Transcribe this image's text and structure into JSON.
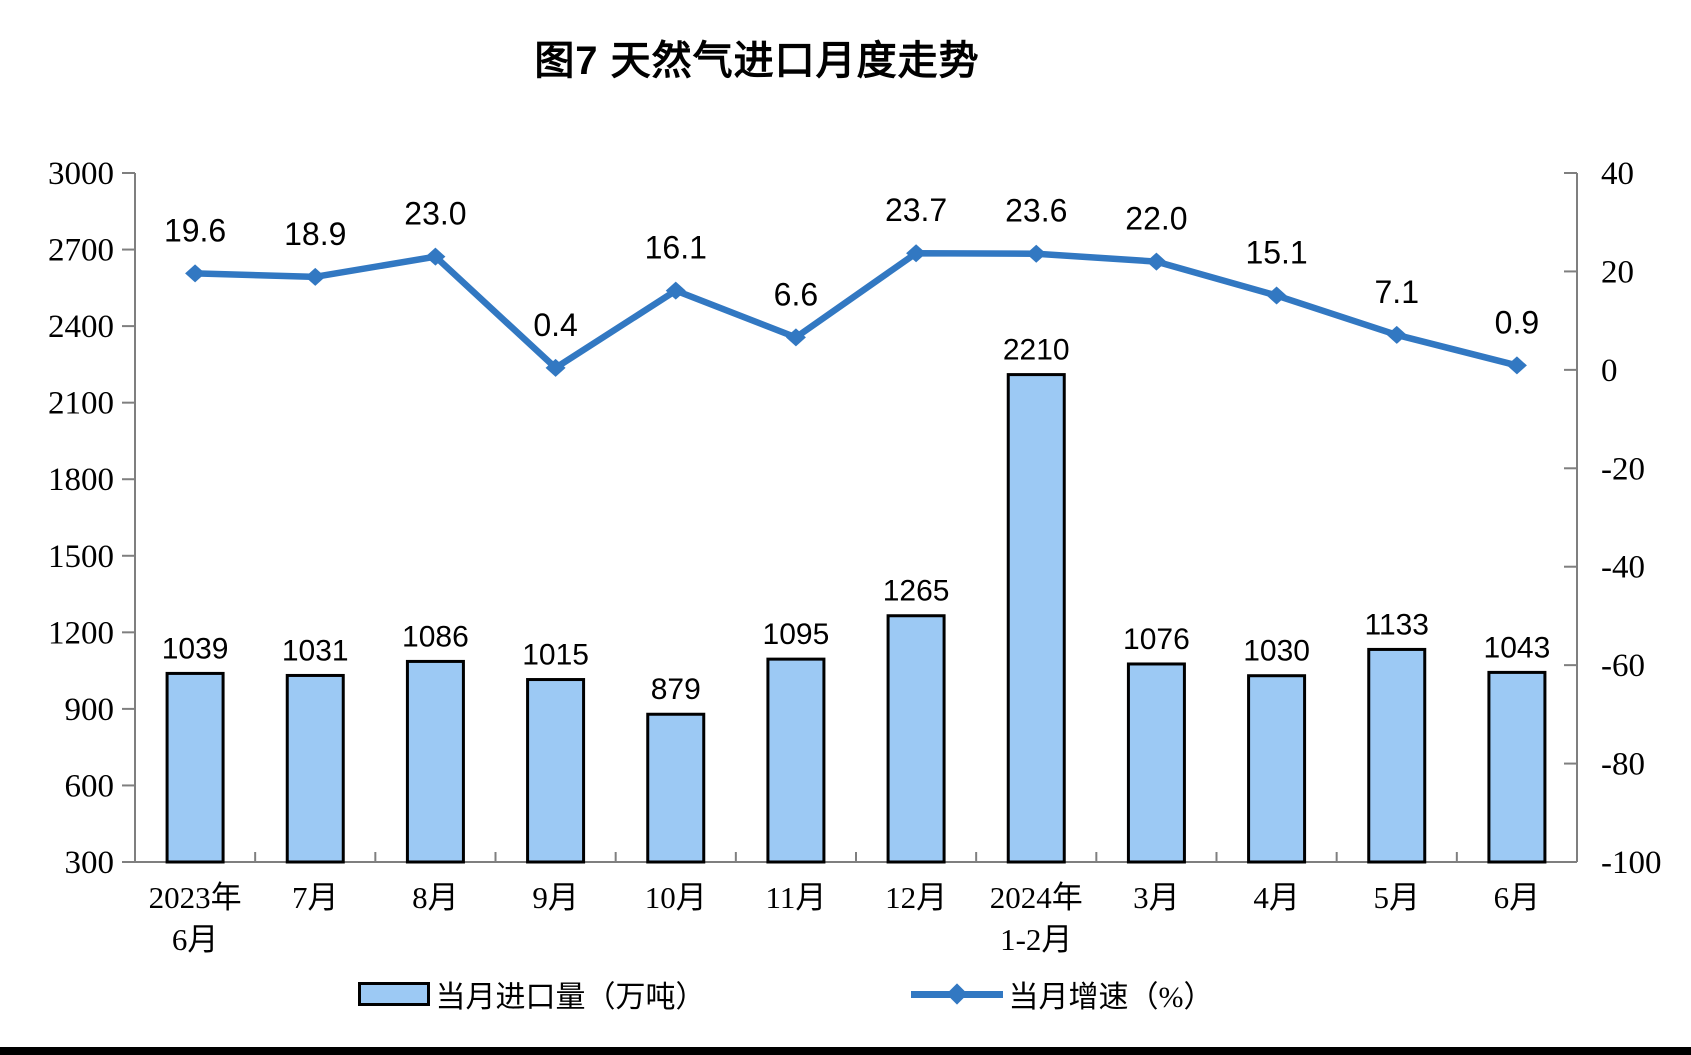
{
  "title": "图7 天然气进口月度走势",
  "colors": {
    "bar_fill": "#9CC9F4",
    "bar_stroke": "#000000",
    "line": "#3278C2",
    "axis_line": "#7F7F7F",
    "text": "#000000"
  },
  "chart_data": {
    "type": "bar+line",
    "title": "图7 天然气进口月度走势",
    "categories": [
      {
        "line1": "2023年",
        "line2": "6月"
      },
      {
        "line1": "7月"
      },
      {
        "line1": "8月"
      },
      {
        "line1": "9月"
      },
      {
        "line1": "10月"
      },
      {
        "line1": "11月"
      },
      {
        "line1": "12月"
      },
      {
        "line1": "2024年",
        "line2": "1-2月"
      },
      {
        "line1": "3月"
      },
      {
        "line1": "4月"
      },
      {
        "line1": "5月"
      },
      {
        "line1": "6月"
      }
    ],
    "series": [
      {
        "name": "当月进口量（万吨）",
        "type": "bar",
        "axis": "left",
        "values": [
          1039,
          1031,
          1086,
          1015,
          879,
          1095,
          1265,
          2210,
          1076,
          1030,
          1133,
          1043
        ],
        "labels": [
          "1039",
          "1031",
          "1086",
          "1015",
          "879",
          "1095",
          "1265",
          "2210",
          "1076",
          "1030",
          "1133",
          "1043"
        ]
      },
      {
        "name": "当月增速（%）",
        "type": "line",
        "axis": "right",
        "values": [
          19.6,
          18.9,
          23.0,
          0.4,
          16.1,
          6.6,
          23.7,
          23.6,
          22.0,
          15.1,
          7.1,
          0.9
        ],
        "labels": [
          "19.6",
          "18.9",
          "23.0",
          "0.4",
          "16.1",
          "6.6",
          "23.7",
          "23.6",
          "22.0",
          "15.1",
          "7.1",
          "0.9"
        ]
      }
    ],
    "left_axis": {
      "min": 300,
      "max": 3000,
      "step": 300,
      "ticks": [
        "3000",
        "2700",
        "2400",
        "2100",
        "1800",
        "1500",
        "1200",
        "900",
        "600",
        "300"
      ]
    },
    "right_axis": {
      "min": -100,
      "max": 40,
      "step": 20,
      "ticks": [
        "40",
        "20",
        "0",
        "-20",
        "-40",
        "-60",
        "-80",
        "-100"
      ]
    },
    "grid": false,
    "legend_position": "bottom"
  }
}
